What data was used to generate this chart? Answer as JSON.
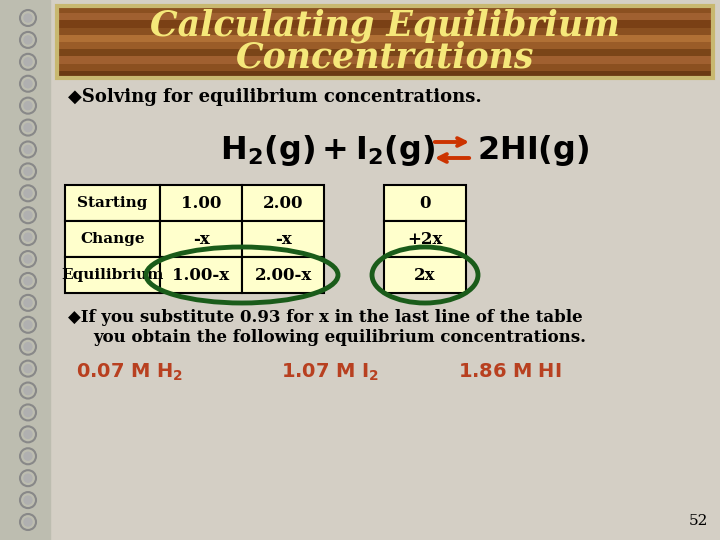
{
  "title_line1": "Calculating Equilibrium",
  "title_line2": "Concentrations",
  "title_color": "#f5e87a",
  "title_bg_color_dark": "#7a4a1e",
  "title_bg_color_mid": "#a0662a",
  "title_border_color": "#c8b870",
  "slide_bg_color": "#d4cfc5",
  "bullet1": "Solving for equilibrium concentrations.",
  "table_rows": [
    "Starting",
    "Change",
    "Equilibrium"
  ],
  "col1_vals": [
    "1.00",
    "-x",
    "1.00-x"
  ],
  "col2_vals": [
    "2.00",
    "-x",
    "2.00-x"
  ],
  "col3_vals": [
    "0",
    "+2x",
    "2x"
  ],
  "table_bg": "#ffffcc",
  "table_border": "#000000",
  "circle_color": "#1a5c1a",
  "bullet2_line1": "If you substitute 0.93 for x in the last line of the table",
  "bullet2_line2": "you obtain the following equilibrium concentrations.",
  "conc_color": "#b84020",
  "arrow_color": "#cc3300",
  "page_num": "52",
  "text_color": "#000000",
  "spiral_color": "#888888",
  "spiral_fill": "#b0b0b0",
  "left_strip_color": "#bdbdb0"
}
